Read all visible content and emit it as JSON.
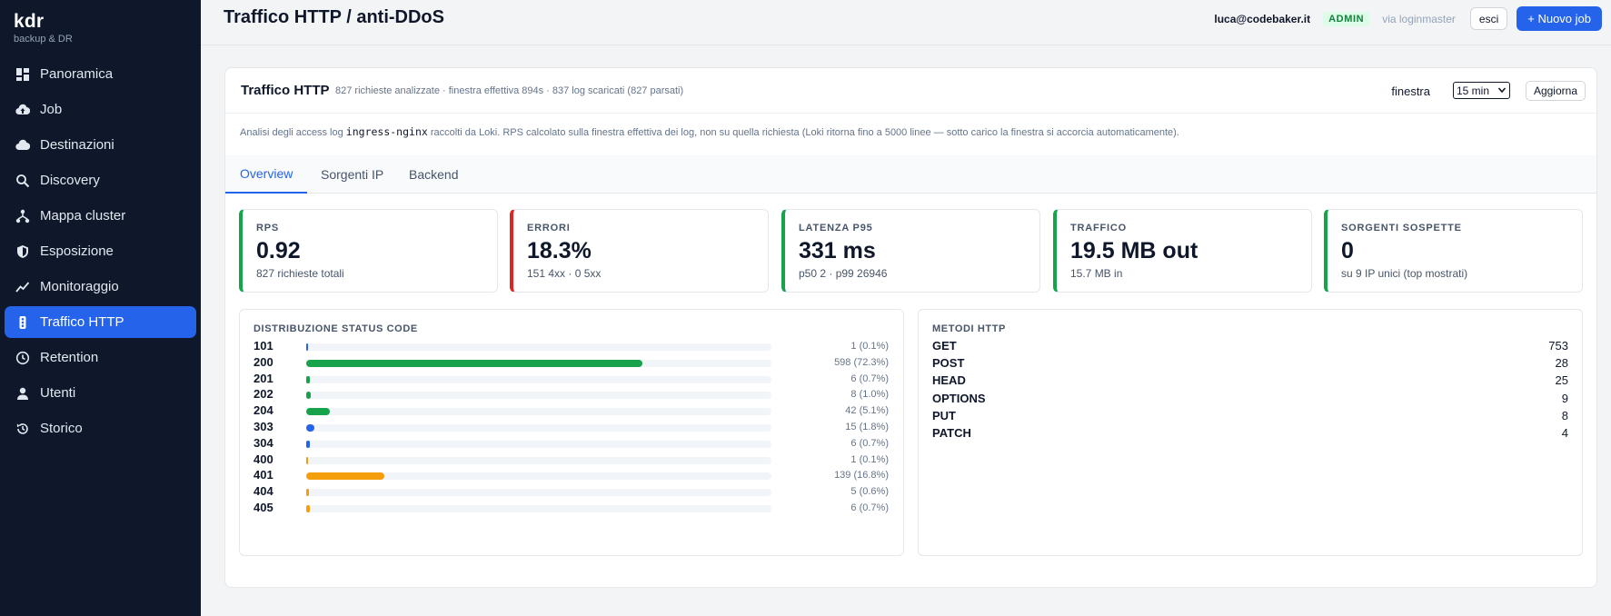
{
  "brand": {
    "name": "kdr",
    "subtitle": "backup & DR"
  },
  "sidebar": {
    "items": [
      {
        "label": "Panoramica",
        "icon": "grid-icon"
      },
      {
        "label": "Job",
        "icon": "cloud-upload-icon"
      },
      {
        "label": "Destinazioni",
        "icon": "cloud-icon"
      },
      {
        "label": "Discovery",
        "icon": "search-icon"
      },
      {
        "label": "Mappa cluster",
        "icon": "hierarchy-icon"
      },
      {
        "label": "Esposizione",
        "icon": "shield-icon"
      },
      {
        "label": "Monitoraggio",
        "icon": "chart-line-icon"
      },
      {
        "label": "Traffico HTTP",
        "icon": "traffic-light-icon",
        "active": true
      },
      {
        "label": "Retention",
        "icon": "clock-icon"
      },
      {
        "label": "Utenti",
        "icon": "user-icon"
      },
      {
        "label": "Storico",
        "icon": "history-icon"
      }
    ]
  },
  "header": {
    "title": "Traffico HTTP / anti-DDoS",
    "user": "luca@codebaker.it",
    "role": "ADMIN",
    "via": "via loginmaster",
    "logout_label": "esci",
    "new_job_label": "+ Nuovo job"
  },
  "card": {
    "title": "Traffico HTTP",
    "meta": "827 richieste analizzate · finestra effettiva 894s · 837 log scaricati (827 parsati)",
    "window_label": "finestra",
    "window_value": "15 min",
    "refresh_label": "Aggiorna",
    "desc_before": "Analisi degli access log ",
    "desc_code": "ingress-nginx",
    "desc_after": " raccolti da Loki. RPS calcolato sulla finestra effettiva dei log, non su quella richiesta (Loki ritorna fino a 5000 linee — sotto carico la finestra si accorcia automaticamente)."
  },
  "tabs": [
    {
      "label": "Overview",
      "active": true
    },
    {
      "label": "Sorgenti IP"
    },
    {
      "label": "Backend"
    }
  ],
  "stats": [
    {
      "label": "RPS",
      "value": "0.92",
      "sub": "827 richieste totali",
      "accent": "#16a34a"
    },
    {
      "label": "ERRORI",
      "value": "18.3%",
      "sub": "151 4xx · 0 5xx",
      "accent": "#dc2626"
    },
    {
      "label": "LATENZA P95",
      "value": "331 ms",
      "sub": "p50 2 · p99 26946",
      "accent": "#16a34a"
    },
    {
      "label": "TRAFFICO",
      "value": "19.5 MB out",
      "sub": "15.7 MB in",
      "accent": "#16a34a"
    },
    {
      "label": "SORGENTI SOSPETTE",
      "value": "0",
      "sub": "su 9 IP unici (top mostrati)",
      "accent": "#16a34a"
    }
  ],
  "status_panel": {
    "title": "DISTRIBUZIONE STATUS CODE",
    "rows": [
      {
        "code": "101",
        "count": "1 (0.1%)",
        "fraction": 0.001,
        "color": "#2563eb"
      },
      {
        "code": "200",
        "count": "598 (72.3%)",
        "fraction": 0.723,
        "color": "#16a34a"
      },
      {
        "code": "201",
        "count": "6 (0.7%)",
        "fraction": 0.007,
        "color": "#16a34a"
      },
      {
        "code": "202",
        "count": "8 (1.0%)",
        "fraction": 0.01,
        "color": "#16a34a"
      },
      {
        "code": "204",
        "count": "42 (5.1%)",
        "fraction": 0.051,
        "color": "#16a34a"
      },
      {
        "code": "303",
        "count": "15 (1.8%)",
        "fraction": 0.018,
        "color": "#2563eb"
      },
      {
        "code": "304",
        "count": "6 (0.7%)",
        "fraction": 0.007,
        "color": "#2563eb"
      },
      {
        "code": "400",
        "count": "1 (0.1%)",
        "fraction": 0.001,
        "color": "#f59e0b"
      },
      {
        "code": "401",
        "count": "139 (16.8%)",
        "fraction": 0.168,
        "color": "#f59e0b"
      },
      {
        "code": "404",
        "count": "5 (0.6%)",
        "fraction": 0.006,
        "color": "#f59e0b"
      },
      {
        "code": "405",
        "count": "6 (0.7%)",
        "fraction": 0.007,
        "color": "#f59e0b"
      }
    ]
  },
  "methods_panel": {
    "title": "METODI HTTP",
    "rows": [
      {
        "method": "GET",
        "count": "753"
      },
      {
        "method": "POST",
        "count": "28"
      },
      {
        "method": "HEAD",
        "count": "25"
      },
      {
        "method": "OPTIONS",
        "count": "9"
      },
      {
        "method": "PUT",
        "count": "8"
      },
      {
        "method": "PATCH",
        "count": "4"
      }
    ]
  }
}
